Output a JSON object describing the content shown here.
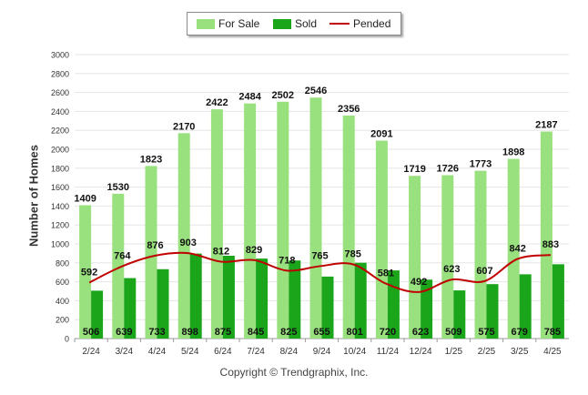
{
  "chart_data": {
    "type": "bar",
    "categories": [
      "2/24",
      "3/24",
      "4/24",
      "5/24",
      "6/24",
      "7/24",
      "8/24",
      "9/24",
      "10/24",
      "11/24",
      "12/24",
      "1/25",
      "2/25",
      "3/25",
      "4/25"
    ],
    "series": [
      {
        "name": "For Sale",
        "type": "bar",
        "color": "#99e07e",
        "values": [
          1409,
          1530,
          1823,
          2170,
          2422,
          2484,
          2502,
          2546,
          2356,
          2091,
          1719,
          1726,
          1773,
          1898,
          2187
        ]
      },
      {
        "name": "Sold",
        "type": "bar",
        "color": "#1aa51a",
        "values": [
          506,
          639,
          733,
          898,
          875,
          845,
          825,
          655,
          801,
          720,
          623,
          509,
          575,
          679,
          785
        ]
      },
      {
        "name": "Pended",
        "type": "line",
        "color": "#c00000",
        "values": [
          592,
          764,
          876,
          903,
          812,
          829,
          718,
          765,
          785,
          581,
          492,
          623,
          607,
          842,
          883
        ]
      }
    ],
    "ylabel": "Number of Homes",
    "ylim": [
      0,
      3000
    ],
    "yticks": [
      0,
      200,
      400,
      600,
      800,
      1000,
      1200,
      1400,
      1600,
      1800,
      2000,
      2200,
      2400,
      2600,
      2800,
      3000
    ],
    "grid": true,
    "legend_position": "top-center"
  },
  "copyright": "Copyright © Trendgraphix, Inc."
}
